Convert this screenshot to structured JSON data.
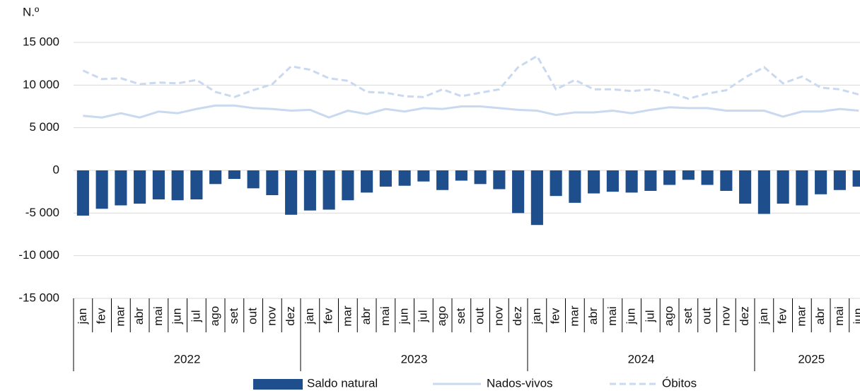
{
  "chart_data": {
    "type": "bar-line",
    "y_label": "N.º",
    "categories": [
      "jan",
      "fev",
      "mar",
      "abr",
      "mai",
      "jun",
      "jul",
      "ago",
      "set",
      "out",
      "nov",
      "dez",
      "jan",
      "fev",
      "mar",
      "abr",
      "mai",
      "jun",
      "jul",
      "ago",
      "set",
      "out",
      "nov",
      "dez",
      "jan",
      "fev",
      "mar",
      "abr",
      "mai",
      "jun",
      "jul",
      "ago",
      "set",
      "out",
      "nov",
      "dez",
      "jan",
      "fev",
      "mar",
      "abr",
      "mai",
      "jun"
    ],
    "years": [
      "2022",
      "2023",
      "2024",
      "2025"
    ],
    "series": [
      {
        "name": "Saldo natural",
        "kind": "bar",
        "color": "#1f4e8c",
        "values": [
          -5300,
          -4500,
          -4100,
          -3900,
          -3400,
          -3500,
          -3400,
          -1600,
          -1000,
          -2100,
          -2900,
          -5200,
          -4700,
          -4600,
          -3500,
          -2600,
          -1900,
          -1800,
          -1300,
          -2300,
          -1200,
          -1600,
          -2200,
          -5000,
          -6400,
          -3000,
          -3800,
          -2700,
          -2500,
          -2600,
          -2400,
          -1700,
          -1100,
          -1700,
          -2400,
          -3900,
          -5100,
          -3900,
          -4100,
          -2800,
          -2300,
          -1900
        ]
      },
      {
        "name": "Nados-vivos",
        "kind": "line",
        "color": "#c9d9ef",
        "values": [
          6400,
          6200,
          6700,
          6200,
          6900,
          6700,
          7200,
          7600,
          7600,
          7300,
          7200,
          7000,
          7100,
          6200,
          7000,
          6600,
          7200,
          6900,
          7300,
          7200,
          7500,
          7500,
          7300,
          7100,
          7000,
          6500,
          6800,
          6800,
          7000,
          6700,
          7100,
          7400,
          7300,
          7300,
          7000,
          7000,
          7000,
          6300,
          6900,
          6900,
          7200,
          7000
        ]
      },
      {
        "name": "Óbitos",
        "kind": "dashed-line",
        "color": "#c9d9ef",
        "values": [
          11700,
          10700,
          10800,
          10100,
          10300,
          10200,
          10600,
          9200,
          8600,
          9400,
          10100,
          12200,
          11800,
          10800,
          10500,
          9200,
          9100,
          8700,
          8600,
          9500,
          8700,
          9100,
          9500,
          12100,
          13400,
          9500,
          10600,
          9500,
          9500,
          9300,
          9500,
          9100,
          8400,
          9000,
          9400,
          10900,
          12100,
          10200,
          11000,
          9700,
          9500,
          8900
        ]
      }
    ],
    "ylim": [
      -15000,
      15000
    ],
    "yticks": [
      {
        "value": -15000,
        "label": "-15 000"
      },
      {
        "value": -10000,
        "label": "-10 000"
      },
      {
        "value": -5000,
        "label": "-5 000"
      },
      0,
      {
        "value": 5000,
        "label": "5 000"
      },
      {
        "value": 10000,
        "label": "10 000"
      },
      {
        "value": 15000,
        "label": "15 000"
      }
    ],
    "grid": true
  }
}
